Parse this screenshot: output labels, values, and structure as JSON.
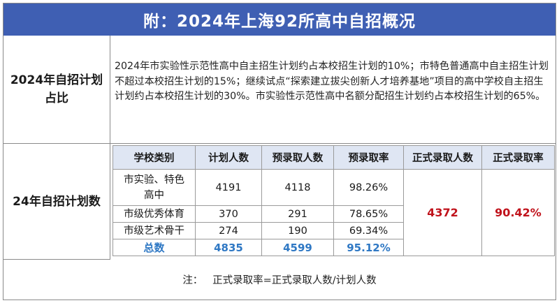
{
  "title": "附：2024年上海92所高中自招概况",
  "section1": {
    "label": "2024年自招计划占比",
    "text": "2024年市实验性示范性高中自主招生计划约占本校招生计划的10%；市特色普通高中自主招生计划不超过本校招生计划的15%；继续试点“探索建立拔尖创新人才培养基地”项目的高中学校自主招生计划约占本校招生计划的30%。市实验性示范性高中名额分配招生计划约占本校招生计划的65%。"
  },
  "section2": {
    "label": "24年自招计划数",
    "headers": [
      "学校类别",
      "计划人数",
      "预录取人数",
      "预录取率",
      "正式录取人数",
      "正式录取率"
    ],
    "rows": [
      {
        "category": "市实验、特色高中",
        "plan": "4191",
        "pre": "4118",
        "pre_rate": "98.26%"
      },
      {
        "category": "市级优秀体育",
        "plan": "370",
        "pre": "291",
        "pre_rate": "78.65%"
      },
      {
        "category": "市级艺术骨干",
        "plan": "274",
        "pre": "190",
        "pre_rate": "69.34%"
      }
    ],
    "total": {
      "category": "总数",
      "plan": "4835",
      "pre": "4599",
      "pre_rate": "95.12%"
    },
    "formal_count": "4372",
    "formal_rate": "90.42%"
  },
  "footnote": "注：   正式录取率=正式录取人数/计划人数",
  "colors": {
    "title_bg": "#3f5fb3",
    "header_bg": "#dfe6f3",
    "total_text": "#2f78c4",
    "highlight_red": "#c0121b"
  }
}
